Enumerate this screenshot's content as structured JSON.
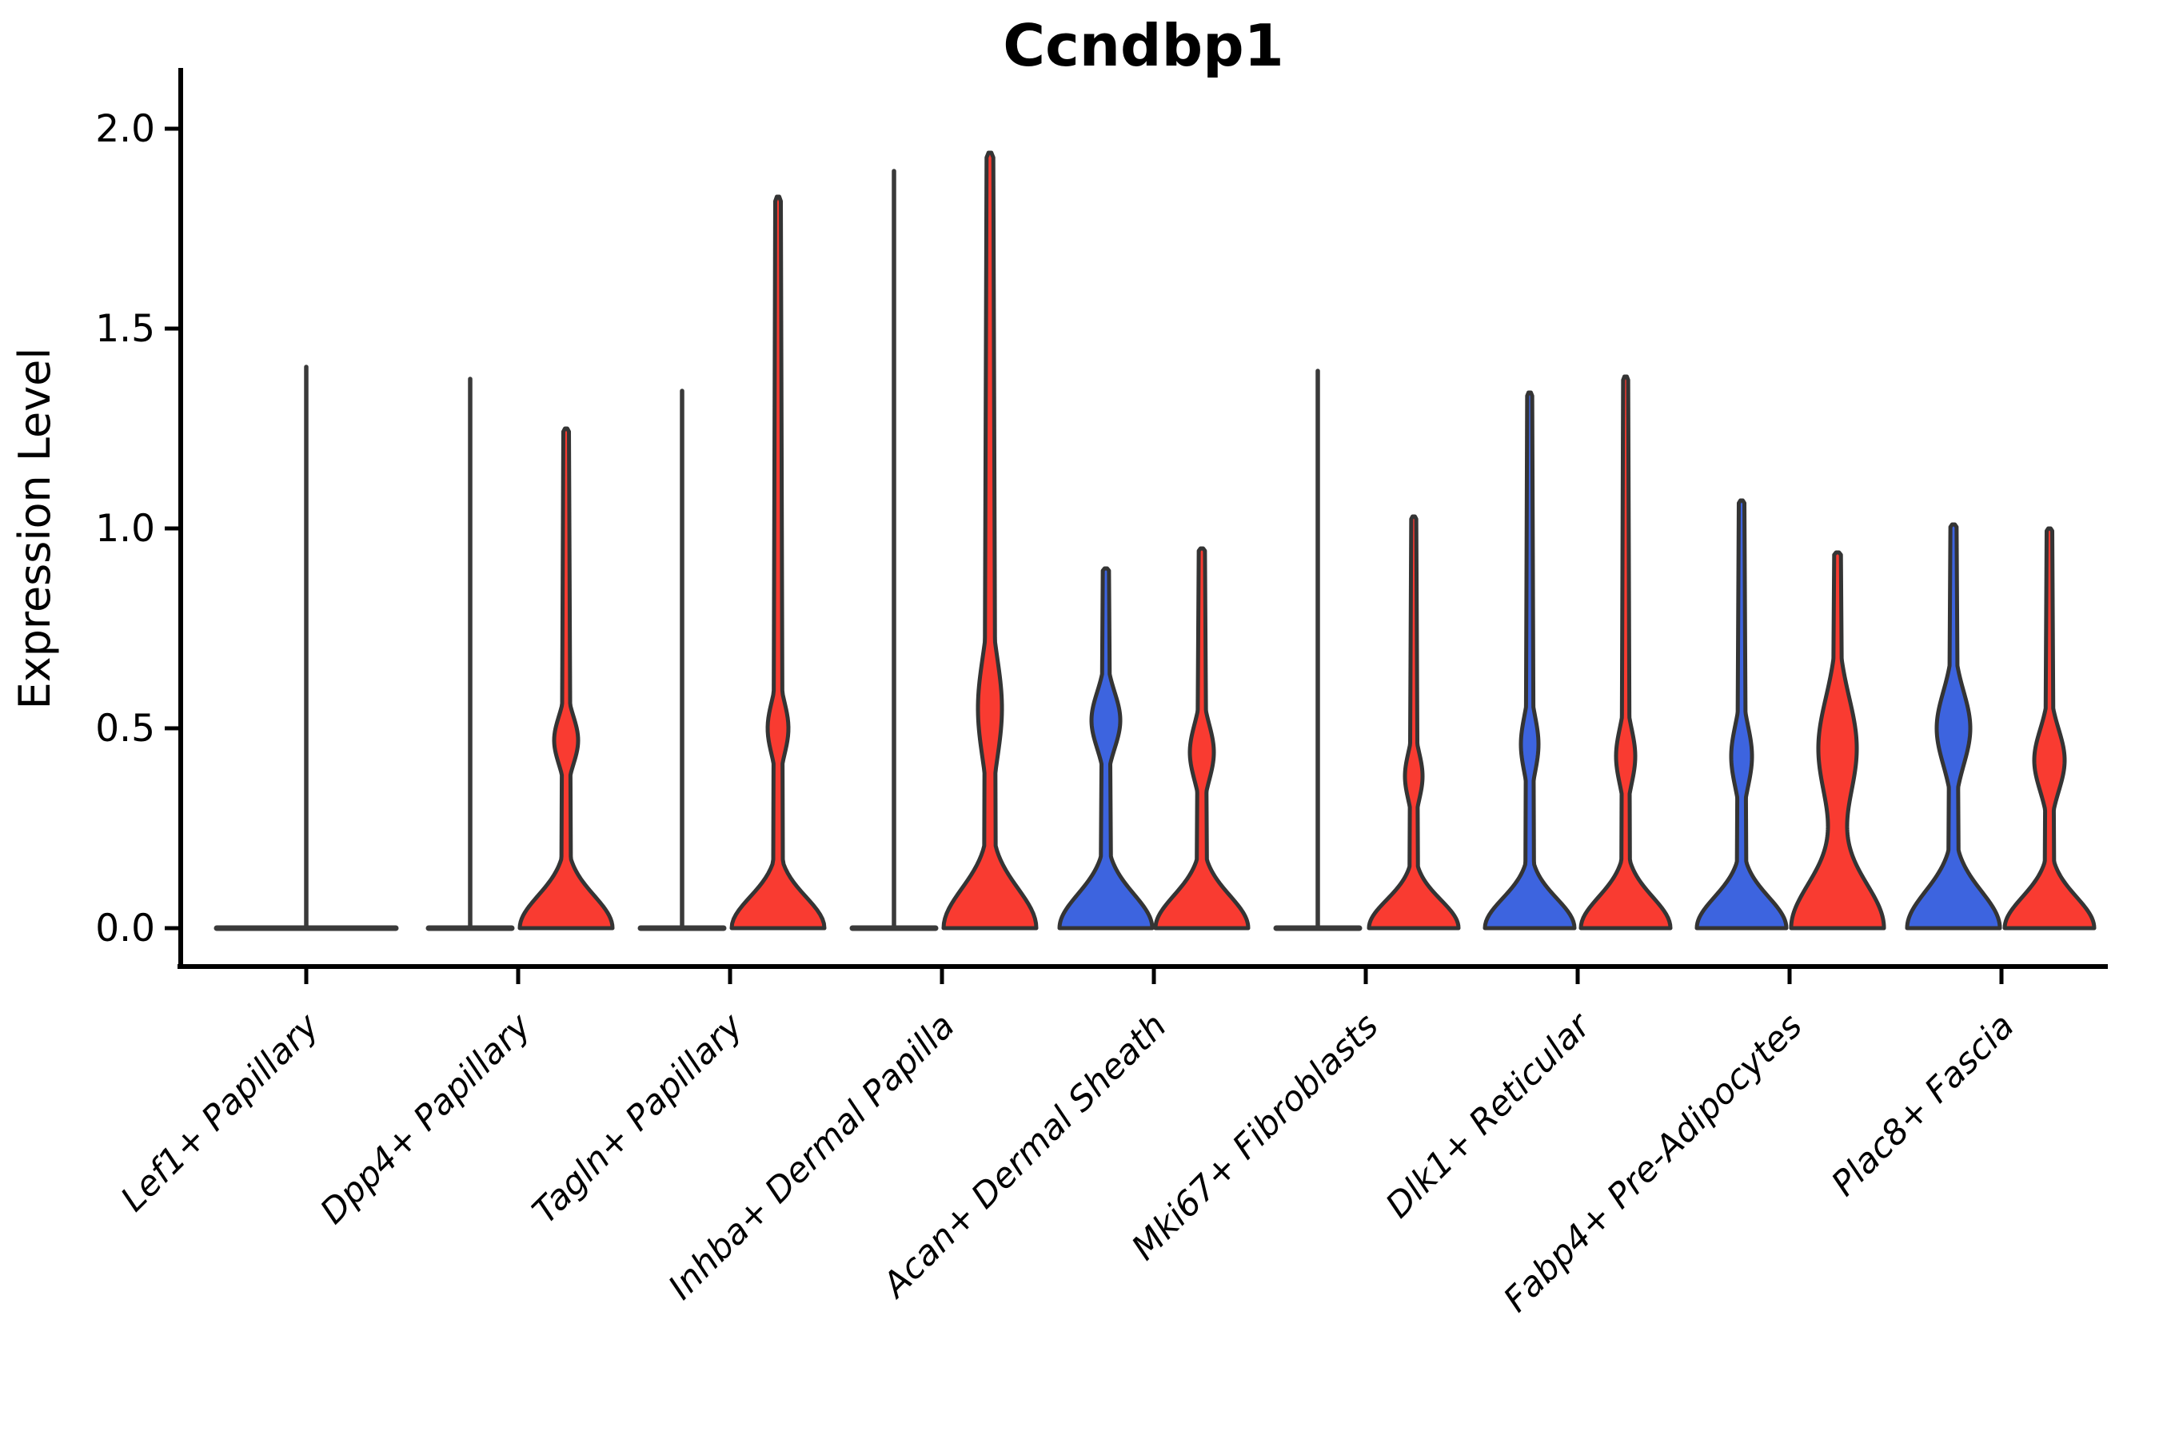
{
  "chart_data": {
    "type": "violin",
    "title": "Ccndbp1",
    "ylabel": "Expression Level",
    "xlabel": "",
    "ylim": [
      0.0,
      2.0
    ],
    "ytick_labels": [
      "0.0",
      "0.5",
      "1.0",
      "1.5",
      "2.0"
    ],
    "ytick_values": [
      0.0,
      0.5,
      1.0,
      1.5,
      2.0
    ],
    "grid": "off",
    "legend": "none",
    "colors": {
      "group_blue": "#3D64DF",
      "group_red": "#F93B31",
      "violin_outline": "#343434",
      "flat_violin_line": "#3A3A3A",
      "axis": "#000000"
    },
    "categories": [
      {
        "label": "Lef1+ Papillary",
        "violins": [
          {
            "side": "full",
            "style": "flat",
            "group": null,
            "max_expression": 1.41
          }
        ]
      },
      {
        "label": "Dpp4+ Papillary",
        "violins": [
          {
            "side": "left",
            "style": "flat",
            "group": null,
            "max_expression": 1.38
          },
          {
            "side": "right",
            "style": "density",
            "group": "group_red",
            "max_expression": 1.25,
            "base": 58,
            "baseSig": 0.115,
            "bulge": 15,
            "bulgeMu": 0.47,
            "bulgeSig": 0.085,
            "stem": 5
          }
        ]
      },
      {
        "label": "Tagln+ Papillary",
        "violins": [
          {
            "side": "left",
            "style": "flat",
            "group": null,
            "max_expression": 1.35
          },
          {
            "side": "right",
            "style": "density",
            "group": "group_red",
            "max_expression": 1.83,
            "base": 58,
            "baseSig": 0.11,
            "bulge": 13,
            "bulgeMu": 0.5,
            "bulgeSig": 0.095,
            "stem": 5
          }
        ]
      },
      {
        "label": "Inhba+ Dermal Papilla",
        "violins": [
          {
            "side": "left",
            "style": "flat",
            "group": null,
            "max_expression": 1.9
          },
          {
            "side": "right",
            "style": "density",
            "group": "group_red",
            "max_expression": 1.94,
            "base": 58,
            "baseSig": 0.14,
            "bulge": 15,
            "bulgeMu": 0.55,
            "bulgeSig": 0.18,
            "stem": 6
          }
        ]
      },
      {
        "label": "Acan+ Dermal Sheath",
        "violins": [
          {
            "side": "left",
            "style": "density",
            "group": "group_blue",
            "max_expression": 0.9,
            "base": 58,
            "baseSig": 0.12,
            "bulge": 18,
            "bulgeMu": 0.52,
            "bulgeSig": 0.1,
            "stem": 5.5
          },
          {
            "side": "right",
            "style": "density",
            "group": "group_red",
            "max_expression": 0.95,
            "base": 58,
            "baseSig": 0.115,
            "bulge": 15,
            "bulgeMu": 0.44,
            "bulgeSig": 0.1,
            "stem": 5.5
          }
        ]
      },
      {
        "label": "Mki67+ Fibroblasts",
        "violins": [
          {
            "side": "left",
            "style": "flat",
            "group": null,
            "max_expression": 1.4
          },
          {
            "side": "right",
            "style": "density",
            "group": "group_red",
            "max_expression": 1.03,
            "base": 56,
            "baseSig": 0.1,
            "bulge": 11,
            "bulgeMu": 0.38,
            "bulgeSig": 0.085,
            "stem": 4.5
          }
        ]
      },
      {
        "label": "Dlk1+ Reticular",
        "violins": [
          {
            "side": "left",
            "style": "density",
            "group": "group_blue",
            "max_expression": 1.34,
            "base": 56,
            "baseSig": 0.105,
            "bulge": 11,
            "bulgeMu": 0.46,
            "bulgeSig": 0.1,
            "stem": 4.5
          },
          {
            "side": "right",
            "style": "density",
            "group": "group_red",
            "max_expression": 1.38,
            "base": 56,
            "baseSig": 0.11,
            "bulge": 12,
            "bulgeMu": 0.43,
            "bulgeSig": 0.1,
            "stem": 4.5
          }
        ]
      },
      {
        "label": "Fabp4+ Pre-Adipocytes",
        "violins": [
          {
            "side": "left",
            "style": "density",
            "group": "group_blue",
            "max_expression": 1.07,
            "base": 56,
            "baseSig": 0.11,
            "bulge": 13,
            "bulgeMu": 0.43,
            "bulgeSig": 0.11,
            "stem": 5
          },
          {
            "side": "right",
            "style": "density",
            "group": "group_red",
            "max_expression": 0.94,
            "base": 58,
            "baseSig": 0.16,
            "bulge": 24,
            "bulgeMu": 0.45,
            "bulgeSig": 0.18,
            "stem": 6
          }
        ]
      },
      {
        "label": "Plac8+ Fascia",
        "violins": [
          {
            "side": "left",
            "style": "density",
            "group": "group_blue",
            "max_expression": 1.01,
            "base": 58,
            "baseSig": 0.13,
            "bulge": 21,
            "bulgeMu": 0.5,
            "bulgeSig": 0.13,
            "stem": 5.5
          },
          {
            "side": "right",
            "style": "density",
            "group": "group_red",
            "max_expression": 1.0,
            "base": 56,
            "baseSig": 0.11,
            "bulge": 19,
            "bulgeMu": 0.42,
            "bulgeSig": 0.11,
            "stem": 5
          }
        ]
      }
    ]
  }
}
